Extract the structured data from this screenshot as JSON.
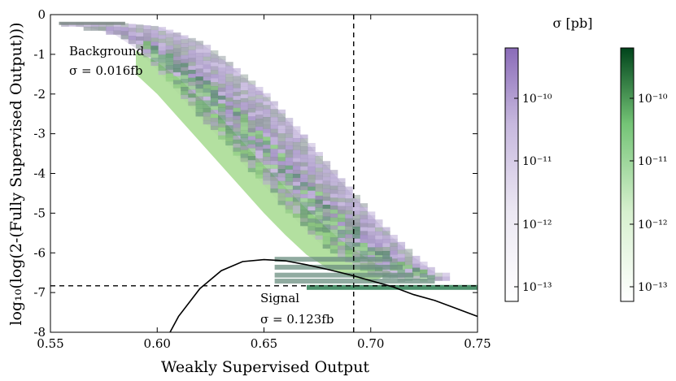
{
  "chart_data": {
    "type": "heatmap",
    "title": "",
    "xlabel": "Weakly Supervised Output",
    "ylabel": "log₁₀(log(2-(Fully Supervised Output)))",
    "xlim": [
      0.55,
      0.75
    ],
    "ylim": [
      -8,
      0
    ],
    "x_ticks": [
      "0.55",
      "0.60",
      "0.65",
      "0.70",
      "0.75"
    ],
    "y_ticks": [
      "0",
      "-1",
      "-2",
      "-3",
      "-4",
      "-5",
      "-6",
      "-7",
      "-8"
    ],
    "grid": false,
    "series": [
      {
        "name": "Background",
        "xsec": "σ = 0.016fb",
        "color": "#7b3294",
        "band_upper": [
          [
            0.554,
            0.2
          ],
          [
            0.57,
            0.2
          ],
          [
            0.58,
            0.2
          ],
          [
            0.6,
            0.3
          ],
          [
            0.62,
            0.7
          ],
          [
            0.63,
            1.1
          ],
          [
            0.64,
            1.55
          ],
          [
            0.65,
            2.0
          ],
          [
            0.66,
            2.6
          ],
          [
            0.67,
            3.2
          ],
          [
            0.68,
            3.85
          ],
          [
            0.69,
            4.45
          ],
          [
            0.7,
            5.05
          ],
          [
            0.71,
            5.6
          ],
          [
            0.72,
            6.1
          ],
          [
            0.73,
            6.5
          ]
        ],
        "band_lower": [
          [
            0.554,
            0.25
          ],
          [
            0.57,
            0.35
          ],
          [
            0.58,
            0.5
          ],
          [
            0.59,
            0.85
          ],
          [
            0.6,
            1.4
          ],
          [
            0.61,
            2.0
          ],
          [
            0.62,
            2.6
          ],
          [
            0.63,
            3.15
          ],
          [
            0.64,
            3.75
          ],
          [
            0.65,
            4.3
          ],
          [
            0.66,
            4.9
          ],
          [
            0.67,
            5.45
          ],
          [
            0.68,
            5.95
          ],
          [
            0.69,
            6.25
          ],
          [
            0.7,
            6.5
          ],
          [
            0.71,
            6.65
          ]
        ]
      },
      {
        "name": "Signal",
        "xsec": "σ = 0.123fb",
        "color": "#1a9641",
        "band_upper": [
          [
            0.59,
            0.9
          ],
          [
            0.6,
            1.2
          ],
          [
            0.61,
            1.6
          ],
          [
            0.62,
            2.1
          ],
          [
            0.63,
            2.6
          ],
          [
            0.64,
            3.2
          ],
          [
            0.65,
            3.8
          ],
          [
            0.66,
            4.35
          ],
          [
            0.67,
            4.9
          ],
          [
            0.68,
            5.4
          ],
          [
            0.69,
            5.85
          ],
          [
            0.7,
            6.2
          ],
          [
            0.71,
            6.5
          ]
        ],
        "band_lower": [
          [
            0.59,
            1.5
          ],
          [
            0.6,
            2.0
          ],
          [
            0.61,
            2.6
          ],
          [
            0.62,
            3.2
          ],
          [
            0.63,
            3.8
          ],
          [
            0.64,
            4.4
          ],
          [
            0.65,
            5.0
          ],
          [
            0.66,
            5.55
          ],
          [
            0.67,
            6.05
          ],
          [
            0.68,
            6.4
          ],
          [
            0.69,
            6.6
          ],
          [
            0.7,
            6.75
          ]
        ]
      }
    ],
    "bands": [
      {
        "name": "Background",
        "y": [
          6.1,
          6.3,
          6.5,
          6.65
        ],
        "x_end": [
          0.71,
          0.715,
          0.72,
          0.73
        ]
      },
      {
        "name": "Signal",
        "y": [
          6.85
        ],
        "x_end": [
          0.75
        ]
      }
    ],
    "cut_lines": {
      "x": 0.692,
      "y": -6.83,
      "style": "dashed"
    },
    "curve": {
      "points": [
        [
          0.606,
          -8.0
        ],
        [
          0.61,
          -7.6
        ],
        [
          0.62,
          -6.9
        ],
        [
          0.63,
          -6.45
        ],
        [
          0.64,
          -6.22
        ],
        [
          0.65,
          -6.17
        ],
        [
          0.66,
          -6.2
        ],
        [
          0.67,
          -6.3
        ],
        [
          0.68,
          -6.42
        ],
        [
          0.69,
          -6.55
        ],
        [
          0.7,
          -6.7
        ],
        [
          0.71,
          -6.85
        ],
        [
          0.72,
          -7.05
        ],
        [
          0.73,
          -7.2
        ],
        [
          0.74,
          -7.4
        ],
        [
          0.75,
          -7.6
        ]
      ]
    },
    "colorbar_label": "σ [pb]",
    "colorbars": [
      {
        "name": "Background",
        "cmap": "purple",
        "tick_labels": [
          "10⁻¹⁰",
          "10⁻¹¹",
          "10⁻¹²",
          "10⁻¹³"
        ]
      },
      {
        "name": "Signal",
        "cmap": "green",
        "tick_labels": [
          "10⁻¹⁰",
          "10⁻¹¹",
          "10⁻¹²",
          "10⁻¹³"
        ]
      }
    ]
  }
}
